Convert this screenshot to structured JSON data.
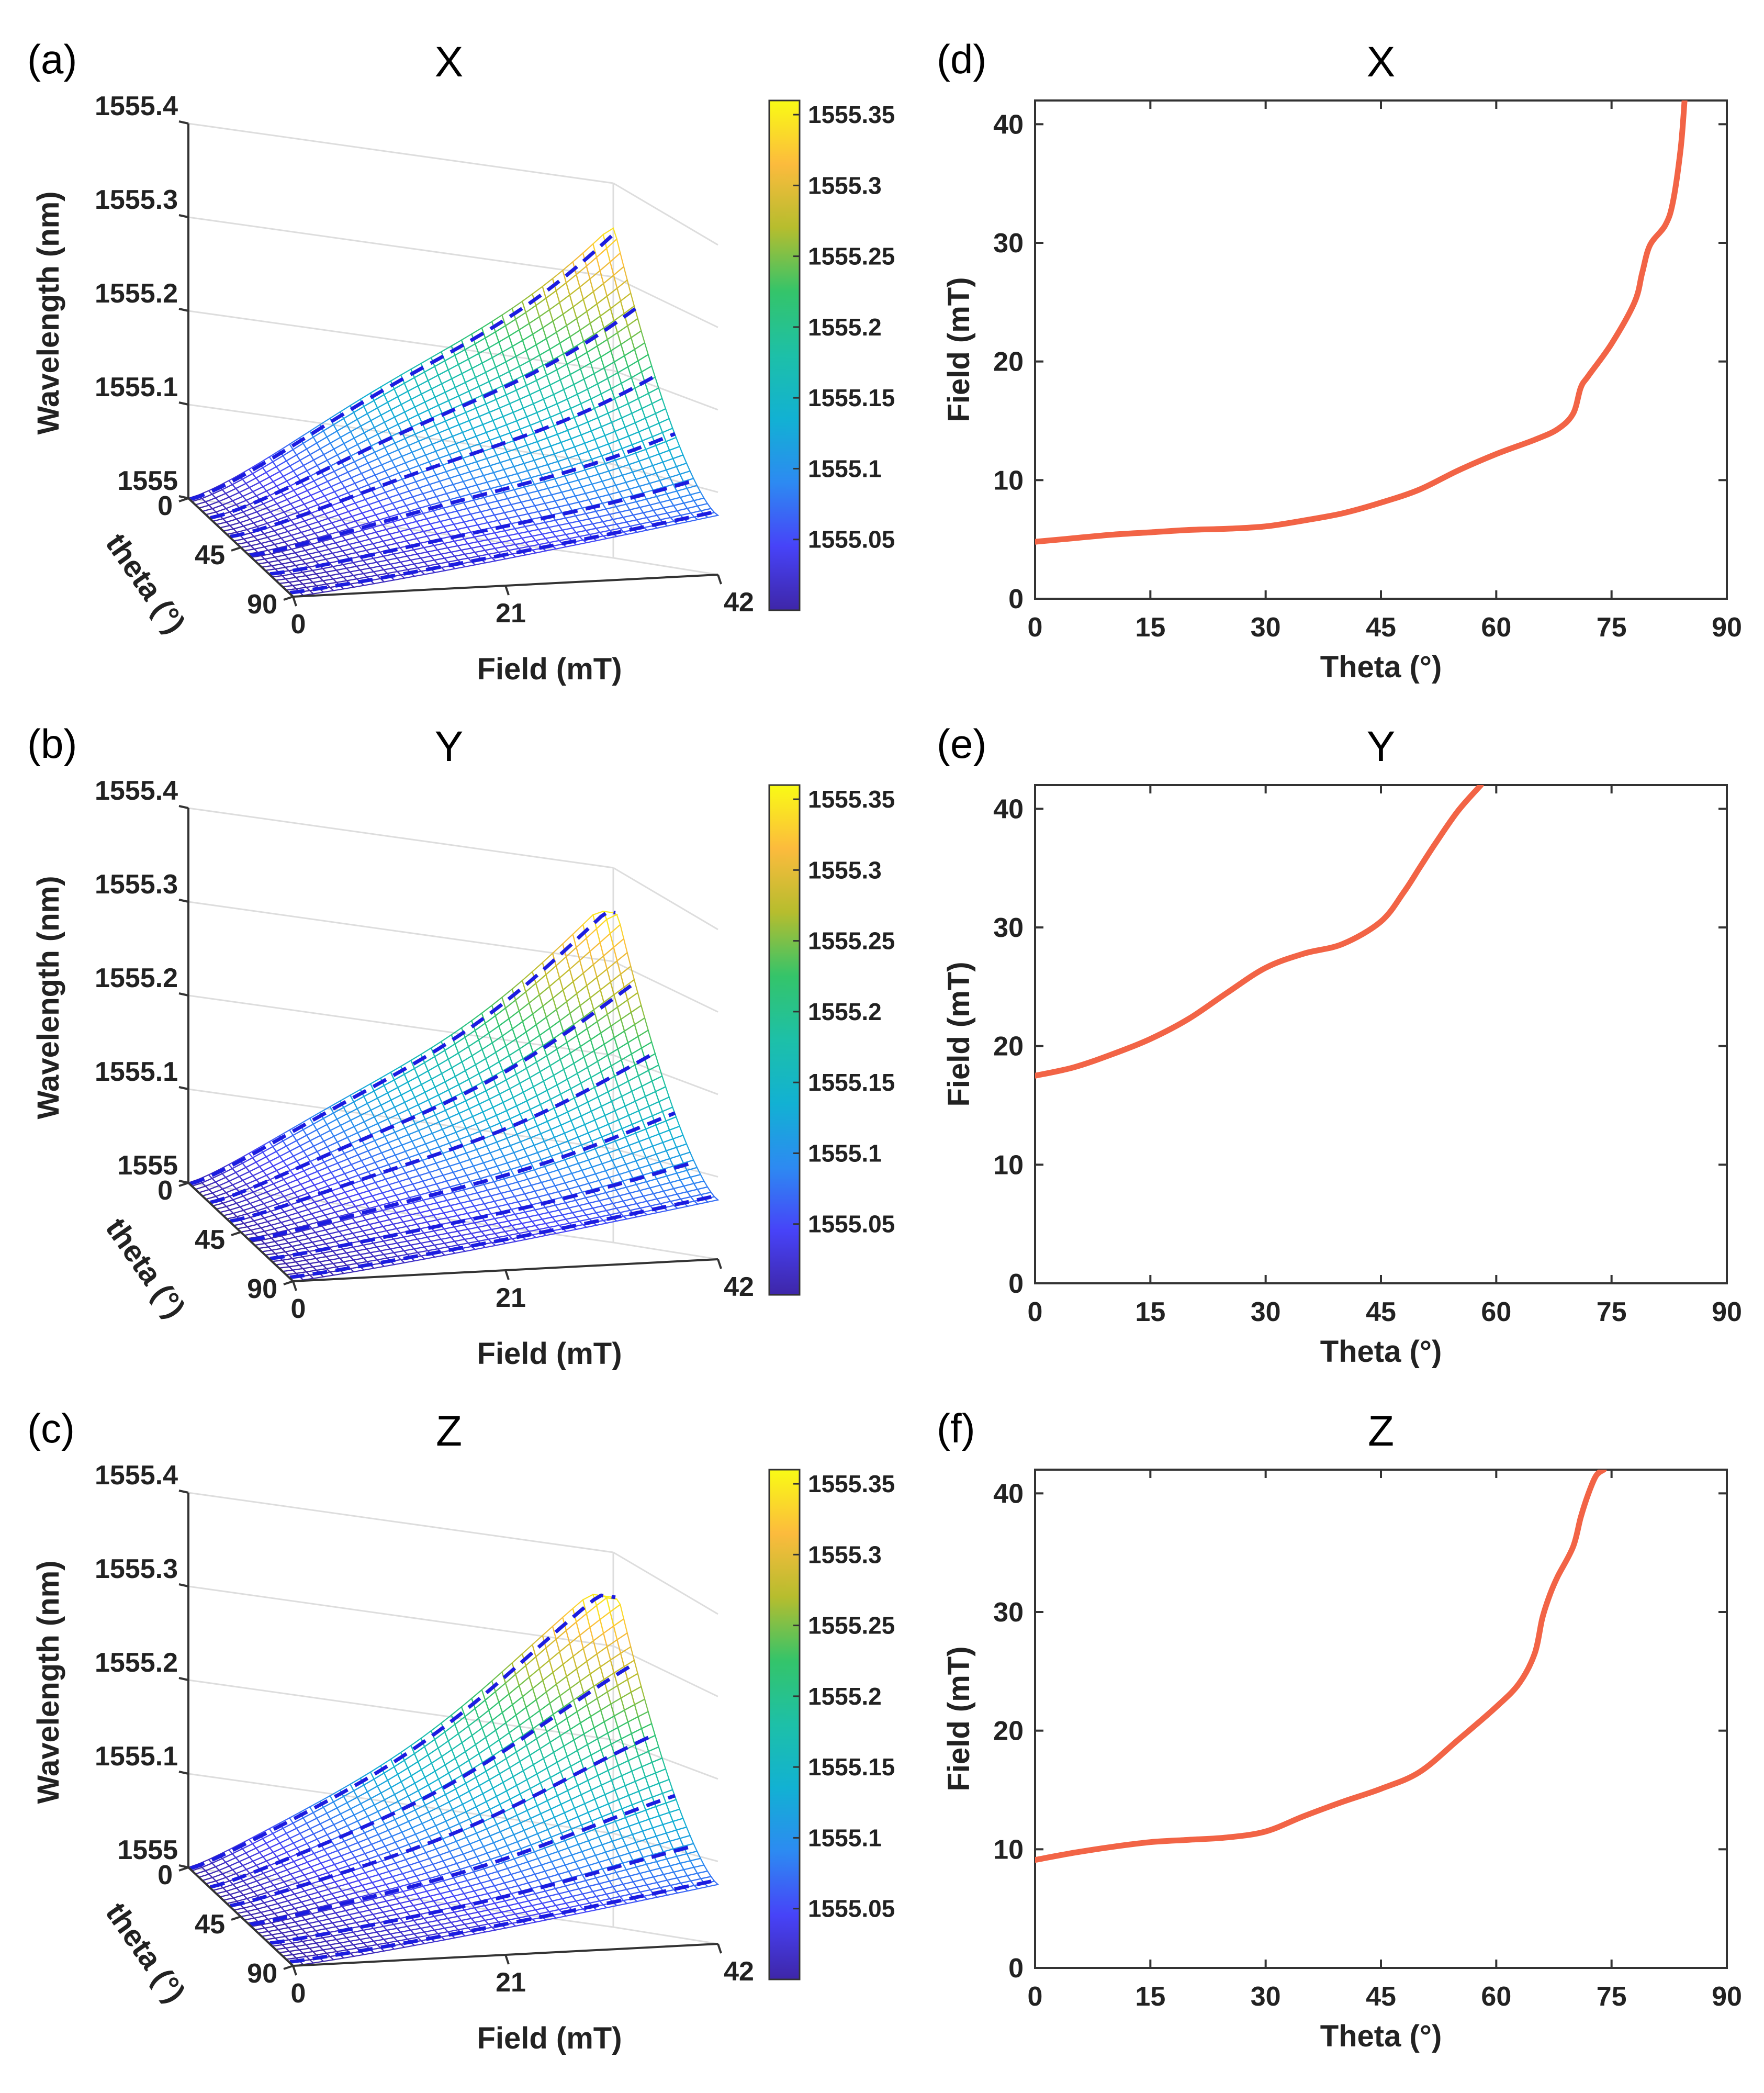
{
  "colors": {
    "curve": "#f26446",
    "contour": "#1c1ce0",
    "axis": "#333333",
    "grid": "#dddddd"
  },
  "colormap": [
    "#3e26a8",
    "#4743f8",
    "#2d8af2",
    "#12b1d3",
    "#1dc0a8",
    "#34c46a",
    "#b6bd2e",
    "#fcbb3d",
    "#f9fb15"
  ],
  "chart_data": [
    {
      "id": "a",
      "type": "surface3d",
      "panel_label": "(a)",
      "title": "X",
      "xlabel": "Field (mT)",
      "ylabel": "theta (°)",
      "zlabel": "Wavelength (nm)",
      "xticks": [
        "0",
        "21",
        "42"
      ],
      "yticks": [
        "0",
        "45",
        "90"
      ],
      "zticks": [
        "1555",
        "1555.1",
        "1555.2",
        "1555.3",
        "1555.4"
      ],
      "xlim": [
        0,
        42
      ],
      "ylim": [
        0,
        90
      ],
      "zlim": [
        1555,
        1555.4
      ],
      "colorbar_ticks": [
        "1555.05",
        "1555.1",
        "1555.15",
        "1555.2",
        "1555.25",
        "1555.3",
        "1555.35"
      ],
      "colorbar_range": [
        1555.0,
        1555.36
      ],
      "max_wavelength": 1555.35,
      "contour_count": 6
    },
    {
      "id": "b",
      "type": "surface3d",
      "panel_label": "(b)",
      "title": "Y",
      "xlabel": "Field (mT)",
      "ylabel": "theta (°)",
      "zlabel": "Wavelength (nm)",
      "xticks": [
        "0",
        "21",
        "42"
      ],
      "yticks": [
        "0",
        "45",
        "90"
      ],
      "zticks": [
        "1555",
        "1555.1",
        "1555.2",
        "1555.3",
        "1555.4"
      ],
      "xlim": [
        0,
        42
      ],
      "ylim": [
        0,
        90
      ],
      "zlim": [
        1555,
        1555.4
      ],
      "colorbar_ticks": [
        "1555.05",
        "1555.1",
        "1555.15",
        "1555.2",
        "1555.25",
        "1555.3",
        "1555.35"
      ],
      "colorbar_range": [
        1555.0,
        1555.36
      ],
      "max_wavelength": 1555.35,
      "contour_count": 6
    },
    {
      "id": "c",
      "type": "surface3d",
      "panel_label": "(c)",
      "title": "Z",
      "xlabel": "Field (mT)",
      "ylabel": "theta (°)",
      "zlabel": "Wavelength (nm)",
      "xticks": [
        "0",
        "21",
        "42"
      ],
      "yticks": [
        "0",
        "45",
        "90"
      ],
      "zticks": [
        "1555",
        "1555.1",
        "1555.2",
        "1555.3",
        "1555.4"
      ],
      "xlim": [
        0,
        42
      ],
      "ylim": [
        0,
        90
      ],
      "zlim": [
        1555,
        1555.4
      ],
      "colorbar_ticks": [
        "1555.05",
        "1555.1",
        "1555.15",
        "1555.2",
        "1555.25",
        "1555.3",
        "1555.35"
      ],
      "colorbar_range": [
        1555.0,
        1555.36
      ],
      "max_wavelength": 1555.35,
      "contour_count": 6
    },
    {
      "id": "d",
      "type": "line",
      "panel_label": "(d)",
      "title": "X",
      "xlabel": "Theta (°)",
      "ylabel": "Field (mT)",
      "xlim": [
        0,
        90
      ],
      "ylim": [
        0,
        42
      ],
      "xticks": [
        0,
        15,
        30,
        45,
        60,
        75,
        90
      ],
      "yticks": [
        0,
        10,
        20,
        30,
        40
      ],
      "x": [
        0,
        5,
        10,
        15,
        20,
        25,
        30,
        35,
        40,
        45,
        50,
        55,
        60,
        65,
        68,
        70,
        71,
        72,
        75,
        78,
        79,
        80,
        82,
        83,
        84,
        84.5
      ],
      "y": [
        4.8,
        5.1,
        5.4,
        5.6,
        5.8,
        5.9,
        6.1,
        6.6,
        7.2,
        8.1,
        9.2,
        10.8,
        12.2,
        13.4,
        14.3,
        15.6,
        17.8,
        18.8,
        21.5,
        25.0,
        27.5,
        29.8,
        31.5,
        33.5,
        38.0,
        42.0
      ]
    },
    {
      "id": "e",
      "type": "line",
      "panel_label": "(e)",
      "title": "Y",
      "xlabel": "Theta (°)",
      "ylabel": "Field (mT)",
      "xlim": [
        0,
        90
      ],
      "ylim": [
        0,
        42
      ],
      "xticks": [
        0,
        15,
        30,
        45,
        60,
        75,
        90
      ],
      "yticks": [
        0,
        10,
        20,
        30,
        40
      ],
      "x": [
        0,
        5,
        10,
        15,
        20,
        25,
        30,
        35,
        40,
        45,
        48,
        50,
        52,
        55,
        58
      ],
      "y": [
        17.5,
        18.2,
        19.3,
        20.6,
        22.3,
        24.5,
        26.6,
        27.8,
        28.6,
        30.5,
        33.0,
        35.0,
        37.0,
        39.8,
        42.0
      ]
    },
    {
      "id": "f",
      "type": "line",
      "panel_label": "(f)",
      "title": "Z",
      "xlabel": "Theta (°)",
      "ylabel": "Field (mT)",
      "xlim": [
        0,
        90
      ],
      "ylim": [
        0,
        42
      ],
      "xticks": [
        0,
        15,
        30,
        45,
        60,
        75,
        90
      ],
      "yticks": [
        0,
        10,
        20,
        30,
        40
      ],
      "x": [
        0,
        5,
        10,
        15,
        20,
        25,
        30,
        35,
        40,
        45,
        50,
        55,
        60,
        63,
        65,
        66,
        67,
        68,
        70,
        71,
        72,
        73,
        74
      ],
      "y": [
        9.1,
        9.7,
        10.2,
        10.6,
        10.8,
        11.0,
        11.5,
        12.8,
        14.0,
        15.1,
        16.5,
        19.2,
        22.0,
        24.0,
        26.5,
        29.5,
        31.5,
        33.0,
        35.5,
        38.0,
        40.0,
        41.5,
        42.0
      ]
    }
  ]
}
